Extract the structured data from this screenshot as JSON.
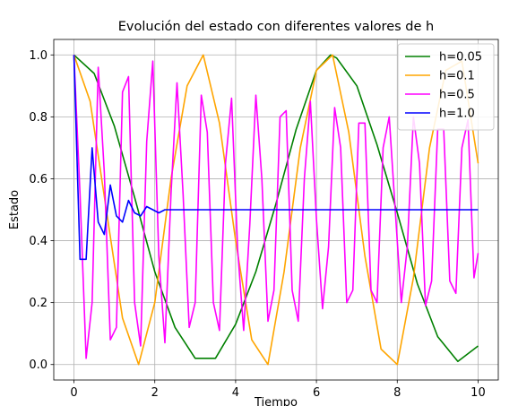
{
  "chart_data": {
    "type": "line",
    "title": "Evolución del estado con diferentes valores de h",
    "xlabel": "Tiempo",
    "ylabel": "Estado",
    "xlim": [
      -0.5,
      10.5
    ],
    "ylim": [
      -0.05,
      1.05
    ],
    "xticks": [
      "0",
      "2",
      "4",
      "6",
      "8",
      "10"
    ],
    "yticks": [
      "0.0",
      "0.2",
      "0.4",
      "0.6",
      "0.8",
      "1.0"
    ],
    "grid": true,
    "legend_position": "top-right",
    "series": [
      {
        "name": "h=0.05",
        "color": "#008000",
        "x": [
          0.0,
          0.5,
          1.0,
          1.5,
          2.0,
          2.5,
          3.0,
          3.5,
          4.0,
          4.5,
          5.0,
          5.5,
          6.0,
          6.35,
          6.5,
          7.0,
          7.5,
          8.0,
          8.5,
          9.0,
          9.5,
          10.0
        ],
        "values": [
          1.0,
          0.94,
          0.77,
          0.54,
          0.3,
          0.12,
          0.02,
          0.02,
          0.13,
          0.3,
          0.52,
          0.76,
          0.95,
          1.0,
          0.99,
          0.9,
          0.71,
          0.49,
          0.26,
          0.09,
          0.01,
          0.06
        ]
      },
      {
        "name": "h=0.1",
        "color": "#ffa500",
        "x": [
          0.0,
          0.4,
          0.8,
          1.2,
          1.6,
          2.0,
          2.4,
          2.8,
          3.2,
          3.6,
          4.0,
          4.4,
          4.8,
          5.2,
          5.6,
          6.0,
          6.4,
          6.8,
          7.2,
          7.6,
          8.0,
          8.4,
          8.8,
          9.2,
          9.6,
          10.0
        ],
        "values": [
          1.0,
          0.85,
          0.5,
          0.15,
          0.0,
          0.2,
          0.6,
          0.9,
          1.0,
          0.78,
          0.4,
          0.08,
          0.0,
          0.3,
          0.7,
          0.95,
          1.0,
          0.75,
          0.35,
          0.05,
          0.0,
          0.28,
          0.7,
          0.95,
          0.98,
          0.65
        ]
      },
      {
        "name": "h=0.5",
        "color": "#ff00ff",
        "x": [
          0.0,
          0.15,
          0.3,
          0.45,
          0.6,
          0.75,
          0.9,
          1.05,
          1.2,
          1.35,
          1.5,
          1.65,
          1.8,
          1.95,
          2.1,
          2.25,
          2.4,
          2.55,
          2.7,
          2.85,
          3.0,
          3.15,
          3.3,
          3.45,
          3.6,
          3.75,
          3.9,
          4.05,
          4.2,
          4.35,
          4.5,
          4.65,
          4.8,
          4.95,
          5.1,
          5.25,
          5.4,
          5.55,
          5.7,
          5.85,
          6.0,
          6.15,
          6.3,
          6.45,
          6.6,
          6.75,
          6.9,
          7.05,
          7.2,
          7.35,
          7.5,
          7.65,
          7.8,
          7.95,
          8.1,
          8.25,
          8.4,
          8.55,
          8.7,
          8.85,
          9.0,
          9.15,
          9.3,
          9.45,
          9.6,
          9.75,
          9.9,
          10.0
        ],
        "values": [
          1.0,
          0.55,
          0.02,
          0.2,
          0.96,
          0.62,
          0.08,
          0.12,
          0.88,
          0.93,
          0.2,
          0.06,
          0.72,
          0.98,
          0.35,
          0.07,
          0.55,
          0.91,
          0.55,
          0.12,
          0.2,
          0.87,
          0.75,
          0.2,
          0.11,
          0.65,
          0.86,
          0.37,
          0.11,
          0.45,
          0.87,
          0.6,
          0.14,
          0.24,
          0.8,
          0.82,
          0.24,
          0.14,
          0.6,
          0.85,
          0.47,
          0.18,
          0.38,
          0.83,
          0.7,
          0.2,
          0.24,
          0.78,
          0.78,
          0.24,
          0.2,
          0.7,
          0.8,
          0.5,
          0.2,
          0.38,
          0.8,
          0.65,
          0.19,
          0.27,
          0.76,
          0.76,
          0.27,
          0.23,
          0.7,
          0.79,
          0.28,
          0.36
        ]
      },
      {
        "name": "h=1.0",
        "color": "#0000ff",
        "x": [
          0.0,
          0.15,
          0.3,
          0.45,
          0.6,
          0.75,
          0.9,
          1.05,
          1.2,
          1.35,
          1.5,
          1.65,
          1.8,
          1.95,
          2.1,
          2.25,
          2.4,
          2.55,
          2.7,
          3.0,
          4.0,
          5.0,
          6.0,
          7.0,
          8.0,
          9.0,
          10.0
        ],
        "values": [
          1.0,
          0.34,
          0.34,
          0.7,
          0.46,
          0.42,
          0.58,
          0.48,
          0.46,
          0.53,
          0.49,
          0.48,
          0.51,
          0.5,
          0.49,
          0.5,
          0.5,
          0.5,
          0.5,
          0.5,
          0.5,
          0.5,
          0.5,
          0.5,
          0.5,
          0.5,
          0.5
        ]
      }
    ]
  }
}
